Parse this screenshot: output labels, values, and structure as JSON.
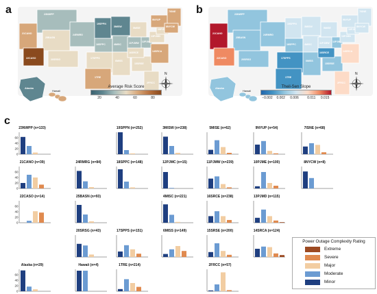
{
  "panels": {
    "a": "a",
    "b": "b",
    "c": "c"
  },
  "map_a": {
    "colorbar_title": "Average Risk Score",
    "colorbar_ticks": [
      "20",
      "40",
      "60",
      "80"
    ],
    "tick_values": [
      20,
      40,
      60,
      80
    ],
    "range": [
      10,
      90
    ],
    "colors": [
      "#3b6270",
      "#5f8690",
      "#a7bdbc",
      "#e8dcc5",
      "#d7a77a",
      "#b7713f",
      "#8a4a1e"
    ],
    "inset_labels": [
      "Alaska",
      "Hawaii"
    ],
    "region_labels": [
      "23NWPP",
      "25BASN",
      "21CANO",
      "22CASO",
      "24RMRG",
      "20SRSG",
      "19SPPN",
      "18SPPC",
      "17SPPS",
      "1TRE",
      "3MISW",
      "4MISC",
      "6MISS",
      "5MISE",
      "11PJMW",
      "12PJMC",
      "15SRSE",
      "14SRCA",
      "16SRCE",
      "13PJMD",
      "10PJME",
      "9NYUP",
      "7ISNE",
      "8NYCW",
      "2FRCC"
    ]
  },
  "map_b": {
    "colorbar_title": "Theil-Sen Slope",
    "colorbar_ticks": [
      "−0.002",
      "0.002",
      "0.006",
      "0.011",
      "0.015"
    ],
    "tick_values": [
      -0.002,
      0.002,
      0.006,
      0.011,
      0.015
    ],
    "range": [
      -0.004,
      0.017
    ],
    "colors": [
      "#2166ac",
      "#4393c3",
      "#92c5de",
      "#d1e5f0",
      "#fddbc7",
      "#ef8a62",
      "#b2182b"
    ],
    "inset_labels": [
      "Alaska",
      "Hawaii"
    ],
    "region_labels": [
      "23NWPP",
      "25BASN",
      "21CANO",
      "22CASO",
      "24RMRG",
      "20SRSG",
      "19SPPN",
      "18SPPC",
      "17SPPS",
      "1TRE",
      "3MISW",
      "4MISC",
      "6MISS",
      "5MISE",
      "11PJMW",
      "12PJMC",
      "15SRSE",
      "14SRCA",
      "16SRCE",
      "13PJMD",
      "10PJME",
      "9NYUP",
      "7ISNE",
      "8NYCW",
      "2FRCC"
    ]
  },
  "compass": {
    "north_label": "N"
  },
  "legend": {
    "title": "Power Outage Complexity Rating",
    "items": [
      {
        "label": "Extreme",
        "color": "#9c4a22"
      },
      {
        "label": "Severe",
        "color": "#e08a4f"
      },
      {
        "label": "Major",
        "color": "#f2cda2"
      },
      {
        "label": "Moderate",
        "color": "#6b9bd2"
      },
      {
        "label": "Minor",
        "color": "#1f3f80"
      }
    ]
  },
  "chart_data": {
    "type": "bar",
    "categories": [
      "Minor",
      "Moderate",
      "Major",
      "Severe",
      "Extreme"
    ],
    "ylim": [
      0,
      80
    ],
    "ytick_values": [
      0,
      20,
      40,
      60
    ],
    "colors": [
      "#1f3f80",
      "#6b9bd2",
      "#f2cda2",
      "#e08a4f",
      "#9c4a22"
    ],
    "panels": [
      {
        "title": "23NWPP (n=133)",
        "values": [
          63,
          30,
          6,
          0,
          0
        ],
        "yticks": true
      },
      {
        "title": "19SPPN (n=252)",
        "values": [
          80,
          15,
          3,
          0,
          0
        ],
        "yticks": false
      },
      {
        "title": "3MISW (n=238)",
        "values": [
          64,
          30,
          5,
          0,
          0
        ],
        "yticks": false
      },
      {
        "title": "5MISE (n=62)",
        "values": [
          16,
          51,
          26,
          5,
          0
        ],
        "yticks": false
      },
      {
        "title": "9NYUP (n=54)",
        "values": [
          35,
          48,
          12,
          3,
          0
        ],
        "yticks": false
      },
      {
        "title": "7ISNE (n=68)",
        "values": [
          28,
          40,
          34,
          7,
          0
        ],
        "yticks": false
      },
      {
        "title": "21CANO (n=39)",
        "values": [
          20,
          50,
          40,
          14,
          0
        ],
        "yticks": true
      },
      {
        "title": "24RMRG (n=84)",
        "values": [
          64,
          26,
          5,
          0,
          0
        ],
        "yticks": false
      },
      {
        "title": "18SPPC (n=148)",
        "values": [
          70,
          25,
          4,
          0,
          0
        ],
        "yticks": false
      },
      {
        "title": "12PJMC (n=15)",
        "values": [
          60,
          2,
          0,
          0,
          0
        ],
        "yticks": false
      },
      {
        "title": "11PJMW (n=239)",
        "values": [
          36,
          44,
          16,
          4,
          0
        ],
        "yticks": false
      },
      {
        "title": "10PJME (n=100)",
        "values": [
          8,
          60,
          20,
          10,
          0
        ],
        "yticks": false
      },
      {
        "title": "8NYCW (n=8)",
        "values": [
          62,
          38,
          0,
          0,
          0
        ],
        "yticks": false
      },
      {
        "title": "22CASO (n=14)",
        "values": [
          0,
          7,
          42,
          37,
          0
        ],
        "yticks": true
      },
      {
        "title": "25BASN (n=93)",
        "values": [
          65,
          30,
          5,
          0,
          0
        ],
        "yticks": false
      },
      {
        "title": "4MISC (n=221)",
        "values": [
          67,
          29,
          3,
          0,
          0
        ],
        "yticks": false
      },
      {
        "title": "16SRCE (n=238)",
        "values": [
          24,
          42,
          24,
          10,
          0
        ],
        "yticks": false
      },
      {
        "title": "13PJMD (n=115)",
        "values": [
          18,
          48,
          24,
          8,
          2
        ],
        "yticks": false
      },
      {
        "title": "20SRSG (n=43)",
        "values": [
          48,
          42,
          9,
          0,
          0
        ],
        "yticks": false
      },
      {
        "title": "17SPPS (n=151)",
        "values": [
          20,
          43,
          28,
          12,
          0
        ],
        "yticks": false
      },
      {
        "title": "6MISS (n=149)",
        "values": [
          11,
          28,
          40,
          22,
          0
        ],
        "yticks": false
      },
      {
        "title": "15SRSE (n=200)",
        "values": [
          18,
          50,
          22,
          8,
          0
        ],
        "yticks": false
      },
      {
        "title": "14SRCA (n=124)",
        "values": [
          30,
          38,
          36,
          13,
          7
        ],
        "yticks": false
      },
      {
        "title": "Alaska (n=29)",
        "values": [
          76,
          17,
          7,
          0,
          0
        ],
        "yticks": true
      },
      {
        "title": "Hawaii (n=4)",
        "values": [
          75,
          75,
          0,
          0,
          0
        ],
        "yticks": false
      },
      {
        "title": "1TRE (n=214)",
        "values": [
          8,
          44,
          30,
          16,
          0
        ],
        "yticks": false
      },
      {
        "title": "2FRCC (n=57)",
        "values": [
          3,
          25,
          69,
          4,
          0
        ],
        "yticks": false
      }
    ]
  }
}
